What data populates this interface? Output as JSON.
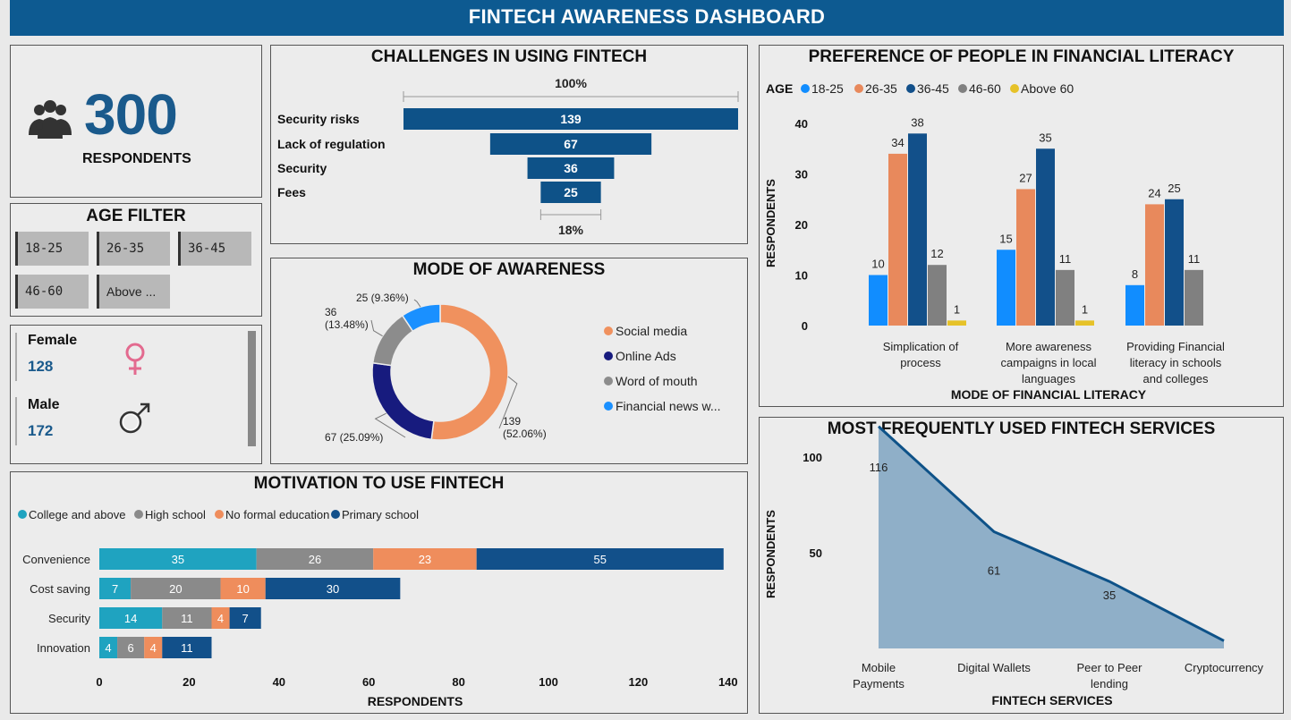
{
  "header": {
    "title": "FINTECH AWARENESS DASHBOARD"
  },
  "colors": {
    "header": "#0d5a91",
    "navy": "#0e5288",
    "age_18_25": "#118dff",
    "age_26_35": "#e8895c",
    "age_36_45": "#12508a",
    "age_46_60": "#808080",
    "age_above_60": "#e6c229",
    "donut_social": "#f0915e",
    "donut_online": "#171b7e",
    "donut_word": "#8c8c8c",
    "donut_news": "#1a90ff",
    "motiv_college": "#1fa3c0",
    "motiv_high": "#8a8a8a",
    "motiv_none": "#ef8d5c",
    "motiv_primary": "#12508a",
    "area_fill": "#8fafc8",
    "area_line": "#0e5288"
  },
  "kpi": {
    "icon": "people-group-icon",
    "value": "300",
    "label": "RESPONDENTS"
  },
  "age_filter": {
    "title": "AGE FILTER",
    "options": [
      "18-25",
      "26-35",
      "36-45",
      "46-60",
      "Above ..."
    ]
  },
  "gender": {
    "female": {
      "label": "Female",
      "value": "128",
      "icon": "female-icon"
    },
    "male": {
      "label": "Male",
      "value": "172",
      "icon": "male-icon"
    }
  },
  "charts": {
    "challenges": {
      "title": "CHALLENGES IN USING FINTECH",
      "top_pct": "100%",
      "bottom_pct": "18%"
    },
    "awareness": {
      "title": "MODE OF AWARENESS"
    },
    "literacy": {
      "title": "PREFERENCE OF PEOPLE IN FINANCIAL LITERACY",
      "legend_title": "AGE",
      "ylabel": "RESPONDENTS",
      "xlabel": "MODE OF FINANCIAL LITERACY"
    },
    "motivation": {
      "title": "MOTIVATION TO USE FINTECH",
      "xlabel": "RESPONDENTS"
    },
    "services": {
      "title": "MOST FREQUENTLY USED FINTECH SERVICES",
      "ylabel": "RESPONDENTS",
      "xlabel": "FINTECH SERVICES"
    }
  },
  "chart_data": [
    {
      "id": "challenges",
      "type": "bar",
      "subtype": "funnel",
      "categories": [
        "Security risks",
        "Lack of regulation",
        "Security",
        "Fees"
      ],
      "values": [
        139,
        67,
        36,
        25
      ]
    },
    {
      "id": "awareness",
      "type": "pie",
      "subtype": "donut",
      "categories": [
        "Social media",
        "Online Ads",
        "Word of mouth",
        "Financial news w..."
      ],
      "values": [
        139,
        67,
        36,
        25
      ],
      "labels": [
        "139 (52.06%)",
        "67 (25.09%)",
        "36 (13.48%)",
        "25 (9.36%)"
      ],
      "legend": "right"
    },
    {
      "id": "literacy",
      "type": "bar",
      "categories": [
        "Simplication of process",
        "More awareness campaigns in local languages",
        "Providing Financial literacy in schools and colleges"
      ],
      "series": [
        {
          "name": "18-25",
          "values": [
            10,
            15,
            8
          ]
        },
        {
          "name": "26-35",
          "values": [
            34,
            27,
            24
          ]
        },
        {
          "name": "36-45",
          "values": [
            38,
            35,
            25
          ]
        },
        {
          "name": "46-60",
          "values": [
            12,
            11,
            11
          ]
        },
        {
          "name": "Above 60",
          "values": [
            1,
            1,
            null
          ]
        }
      ],
      "yticks": [
        0,
        10,
        20,
        30,
        40
      ],
      "ylim": [
        0,
        42
      ],
      "legend": "top-left"
    },
    {
      "id": "motivation",
      "type": "bar",
      "subtype": "horizontal-stacked",
      "categories": [
        "Convenience",
        "Cost saving",
        "Security",
        "Innovation"
      ],
      "series": [
        {
          "name": "College and above",
          "values": [
            35,
            7,
            14,
            4
          ]
        },
        {
          "name": "High school",
          "values": [
            26,
            20,
            11,
            6
          ]
        },
        {
          "name": "No formal education",
          "values": [
            23,
            10,
            4,
            4
          ]
        },
        {
          "name": "Primary school",
          "values": [
            55,
            30,
            7,
            11
          ]
        }
      ],
      "xticks": [
        0,
        20,
        40,
        60,
        80,
        100,
        120,
        140
      ],
      "xlim": [
        0,
        140
      ],
      "legend": "top-left"
    },
    {
      "id": "services",
      "type": "area",
      "categories": [
        "Mobile Payments",
        "Digital Wallets",
        "Peer to Peer lending",
        "Cryptocurrency"
      ],
      "values": [
        116,
        61,
        35,
        4
      ],
      "labels": [
        "116",
        "61",
        "35",
        ""
      ],
      "yticks": [
        50,
        100
      ]
    }
  ]
}
